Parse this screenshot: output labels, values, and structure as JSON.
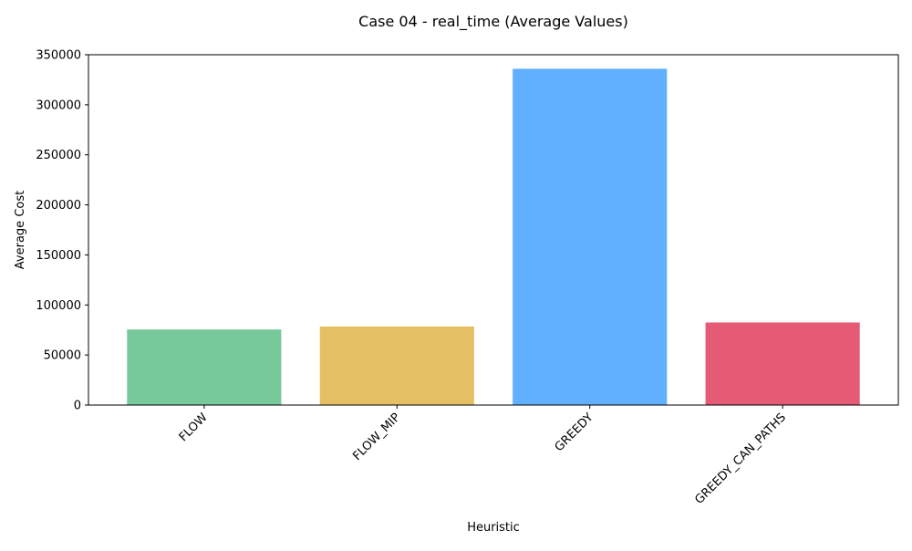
{
  "chart_data": {
    "type": "bar",
    "title": "Case 04 - real_time (Average Values)",
    "xlabel": "Heuristic",
    "ylabel": "Average Cost",
    "categories": [
      "FLOW",
      "FLOW_MIP",
      "GREEDY",
      "GREEDY_CAN_PATHS"
    ],
    "values": [
      75500,
      78500,
      336000,
      82500
    ],
    "colors": [
      "#77c99c",
      "#e5c062",
      "#61b0ff",
      "#e55a75"
    ],
    "ylim": [
      0,
      350000
    ],
    "yticks": [
      0,
      50000,
      100000,
      150000,
      200000,
      250000,
      300000,
      350000
    ],
    "grid": false,
    "legend": "none"
  }
}
